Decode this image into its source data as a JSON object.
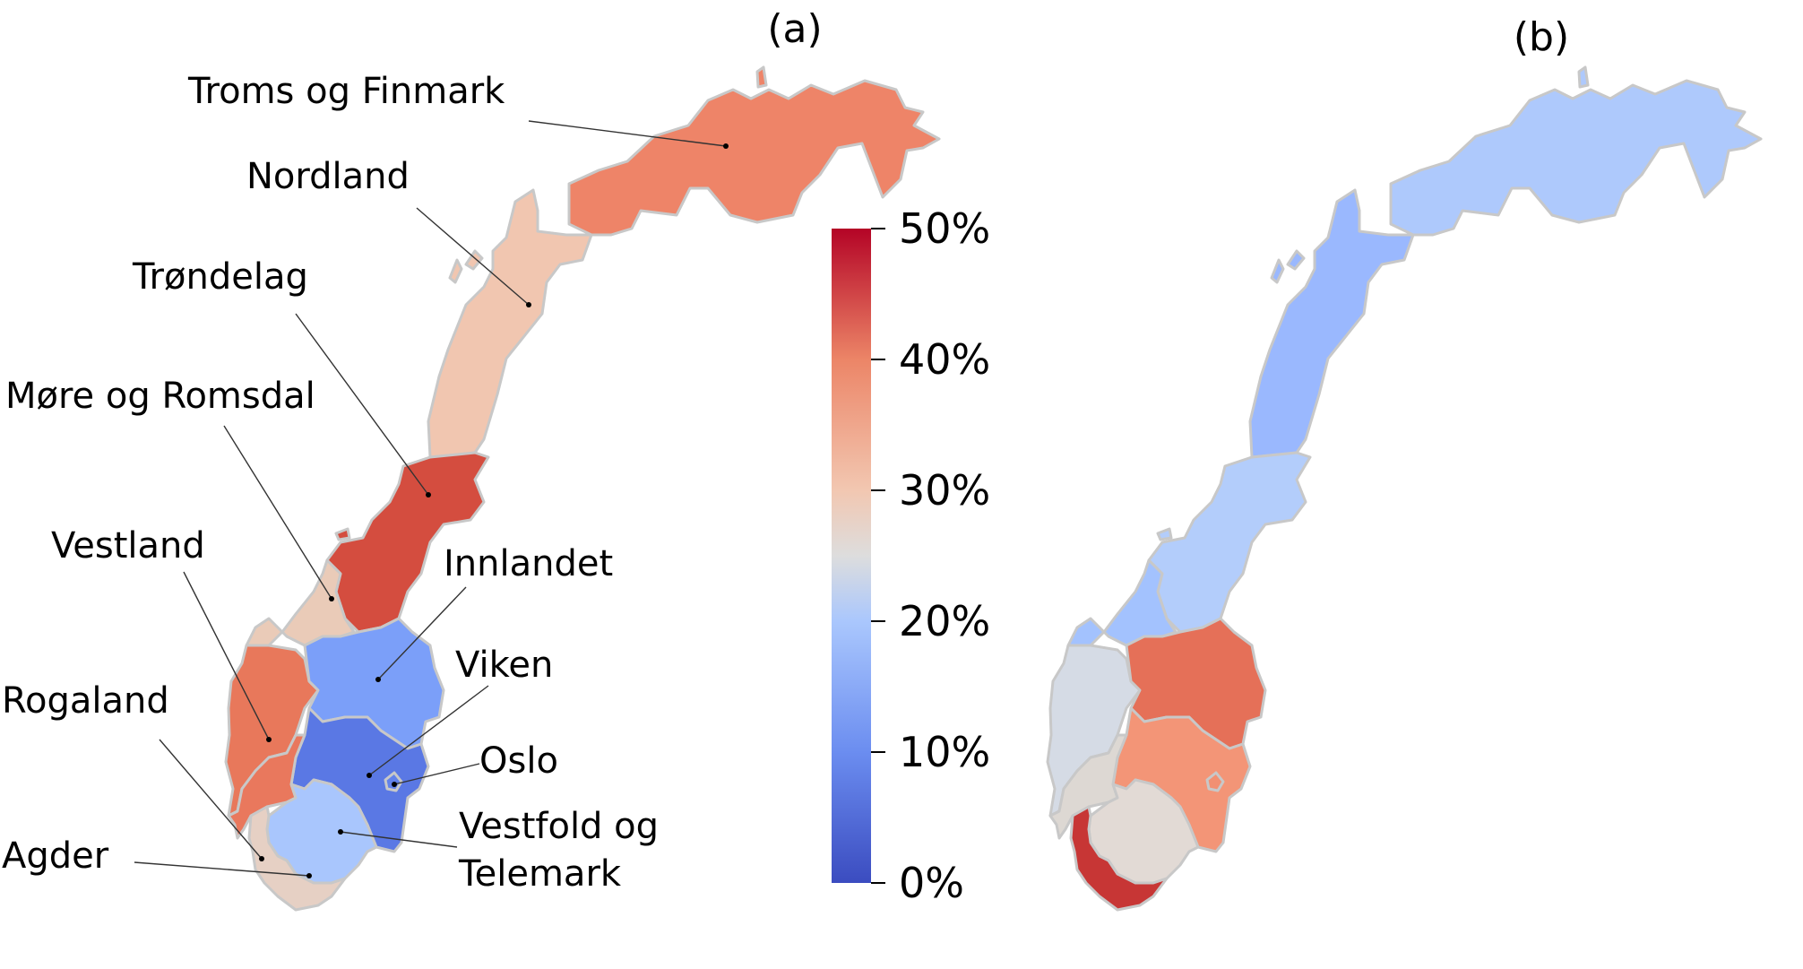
{
  "panels": [
    {
      "id": "a",
      "label": "(a)"
    },
    {
      "id": "b",
      "label": "(b)"
    }
  ],
  "colorbar": {
    "colormap": "coolwarm",
    "min_color": "#3b4cc0",
    "mid_color": "#dddddd",
    "max_color": "#b40426",
    "ticks": [
      "0%",
      "10%",
      "20%",
      "30%",
      "40%",
      "50%"
    ],
    "tick_values": [
      0,
      10,
      20,
      30,
      40,
      50
    ],
    "range": [
      0,
      50
    ]
  },
  "regions_a": [
    {
      "key": "troms",
      "name": "Troms og Finmark",
      "value": 40,
      "color": "#ee8468"
    },
    {
      "key": "nordland",
      "name": "Nordland",
      "value": 30,
      "color": "#f1c6b0"
    },
    {
      "key": "trondelag",
      "name": "Trøndelag",
      "value": 46,
      "color": "#d44d3f"
    },
    {
      "key": "more",
      "name": "Møre og Romsdal",
      "value": 29,
      "color": "#eacbb8"
    },
    {
      "key": "vestland",
      "name": "Vestland",
      "value": 41,
      "color": "#e8785b"
    },
    {
      "key": "innlandet",
      "name": "Innlandet",
      "value": 10,
      "color": "#7b9ff9"
    },
    {
      "key": "viken",
      "name": "Viken",
      "value": 5,
      "color": "#5a78e4"
    },
    {
      "key": "oslo",
      "name": "Oslo",
      "value": 6,
      "color": "#6282ea"
    },
    {
      "key": "rogaland",
      "name": "Rogaland",
      "value": 41,
      "color": "#e9785d"
    },
    {
      "key": "vestfold",
      "name": "Vestfold og Telemark",
      "value": 15,
      "color": "#a9c6fd"
    },
    {
      "key": "agder",
      "name": "Agder",
      "value": 27,
      "color": "#e6d0c4"
    }
  ],
  "labels_a": {
    "troms": "Troms og Finmark",
    "nordland": "Nordland",
    "trondelag": "Trøndelag",
    "more": "Møre og Romsdal",
    "vestland": "Vestland",
    "innlandet": "Innlandet",
    "viken": "Viken",
    "oslo": "Oslo",
    "rogaland": "Rogaland",
    "vestfold_line1": "Vestfold og",
    "vestfold_line2": "Telemark",
    "agder": "Agder"
  },
  "regions_b": [
    {
      "key": "troms",
      "value": 17,
      "color": "#aec9fc"
    },
    {
      "key": "nordland",
      "value": 13,
      "color": "#9ab8fe"
    },
    {
      "key": "trondelag",
      "value": 17,
      "color": "#b3cdfb"
    },
    {
      "key": "more",
      "value": 14,
      "color": "#a3c2fe"
    },
    {
      "key": "vestland",
      "value": 23,
      "color": "#d5dbe5"
    },
    {
      "key": "innlandet",
      "value": 40,
      "color": "#e57058"
    },
    {
      "key": "viken",
      "value": 37,
      "color": "#f39577"
    },
    {
      "key": "oslo",
      "value": 36,
      "color": "#f29072"
    },
    {
      "key": "rogaland",
      "value": 26,
      "color": "#ddd8d3"
    },
    {
      "key": "vestfold",
      "value": 26,
      "color": "#e2dad5"
    },
    {
      "key": "agder",
      "value": 47,
      "color": "#c73635"
    }
  ]
}
